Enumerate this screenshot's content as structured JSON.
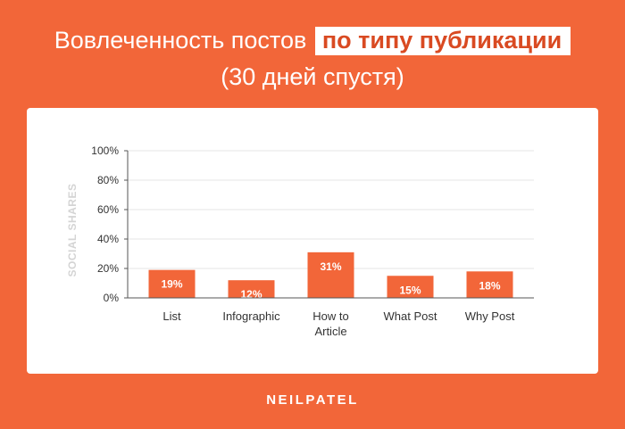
{
  "header": {
    "title_part1": "Вовлеченность постов",
    "title_part2": "по типу публикации",
    "subtitle": "(30 дней спустя)"
  },
  "brand": "NEILPATEL",
  "colors": {
    "background": "#f26639",
    "bar": "#f26639",
    "highlight_text": "#d94a22"
  },
  "chart_data": {
    "type": "bar",
    "categories": [
      [
        "List"
      ],
      [
        "Infographic"
      ],
      [
        "How to",
        "Article"
      ],
      [
        "What Post"
      ],
      [
        "Why Post"
      ]
    ],
    "values": [
      19,
      12,
      31,
      15,
      18
    ],
    "data_labels": [
      "19%",
      "12%",
      "31%",
      "15%",
      "18%"
    ],
    "ylabel": "SOCIAL SHARES",
    "ylim": [
      0,
      100
    ],
    "yticks": [
      "0%",
      "20%",
      "40%",
      "60%",
      "80%",
      "100%"
    ],
    "grid": true
  }
}
